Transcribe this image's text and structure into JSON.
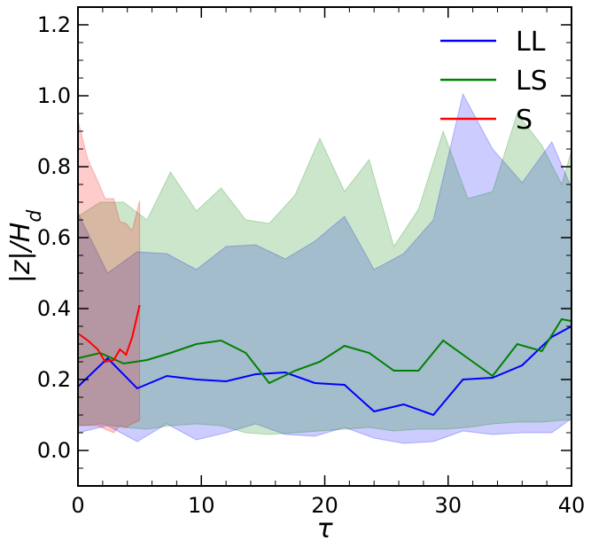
{
  "chart_data": {
    "type": "line",
    "xlabel": "τ",
    "ylabel": "|z|/H_d",
    "xlim": [
      0,
      40
    ],
    "ylim": [
      -0.1,
      1.25
    ],
    "x_ticks": [
      0,
      10,
      20,
      30,
      40
    ],
    "y_ticks": [
      0.0,
      0.2,
      0.4,
      0.6,
      0.8,
      1.0,
      1.2
    ],
    "x_tick_labels": [
      "0",
      "10",
      "20",
      "30",
      "40"
    ],
    "y_tick_labels": [
      "0.0",
      "0.2",
      "0.4",
      "0.6",
      "0.8",
      "1.0",
      "1.2"
    ],
    "legend": {
      "position": "top-right"
    },
    "grid": false,
    "series": [
      {
        "name": "LL",
        "color": "#0000ff",
        "fill_color": "#0000ff",
        "x": [
          0,
          2.4,
          4.8,
          7.2,
          9.6,
          12,
          14.4,
          16.8,
          19.2,
          21.6,
          24,
          26.4,
          28.8,
          31.2,
          33.6,
          36,
          38.4,
          40
        ],
        "y": [
          0.18,
          0.26,
          0.175,
          0.21,
          0.2,
          0.195,
          0.215,
          0.22,
          0.19,
          0.185,
          0.11,
          0.13,
          0.1,
          0.2,
          0.205,
          0.24,
          0.32,
          0.35
        ],
        "lower": [
          0.05,
          0.07,
          0.025,
          0.075,
          0.03,
          0.05,
          0.075,
          0.045,
          0.04,
          0.065,
          0.035,
          0.02,
          0.025,
          0.055,
          0.045,
          0.05,
          0.05,
          0.09
        ],
        "upper": [
          0.67,
          0.5,
          0.56,
          0.555,
          0.51,
          0.575,
          0.58,
          0.54,
          0.59,
          0.66,
          0.51,
          0.555,
          0.65,
          1.005,
          0.85,
          0.755,
          0.87,
          0.74
        ]
      },
      {
        "name": "LS",
        "color": "#008000",
        "fill_color": "#008000",
        "x": [
          0,
          1.8,
          3.7,
          5.6,
          7.5,
          9.6,
          11.6,
          13.6,
          15.5,
          17.6,
          19.6,
          21.6,
          23.6,
          25.6,
          27.6,
          29.6,
          31.6,
          33.6,
          35.6,
          37.6,
          39.2,
          40
        ],
        "y": [
          0.26,
          0.275,
          0.245,
          0.255,
          0.275,
          0.3,
          0.31,
          0.275,
          0.19,
          0.225,
          0.25,
          0.295,
          0.275,
          0.225,
          0.225,
          0.31,
          0.26,
          0.21,
          0.3,
          0.28,
          0.37,
          0.365
        ],
        "lower": [
          0.07,
          0.075,
          0.065,
          0.06,
          0.07,
          0.075,
          0.07,
          0.05,
          0.045,
          0.05,
          0.055,
          0.06,
          0.065,
          0.055,
          0.06,
          0.06,
          0.065,
          0.075,
          0.08,
          0.08,
          0.085,
          0.085
        ],
        "upper": [
          0.66,
          0.7,
          0.7,
          0.65,
          0.785,
          0.675,
          0.74,
          0.65,
          0.64,
          0.72,
          0.88,
          0.73,
          0.82,
          0.575,
          0.68,
          0.9,
          0.71,
          0.73,
          0.95,
          0.86,
          0.75,
          0.845
        ]
      },
      {
        "name": "S",
        "color": "#ff0000",
        "fill_color": "#ff0000",
        "x": [
          0,
          0.8,
          1.6,
          2.2,
          2.9,
          3.4,
          3.9,
          4.4,
          5.0
        ],
        "y": [
          0.33,
          0.31,
          0.285,
          0.25,
          0.255,
          0.285,
          0.27,
          0.32,
          0.41
        ],
        "lower": [
          0.07,
          0.07,
          0.07,
          0.06,
          0.05,
          0.07,
          0.065,
          0.075,
          0.085
        ],
        "upper": [
          0.93,
          0.82,
          0.76,
          0.71,
          0.71,
          0.645,
          0.64,
          0.62,
          0.705
        ]
      }
    ]
  }
}
